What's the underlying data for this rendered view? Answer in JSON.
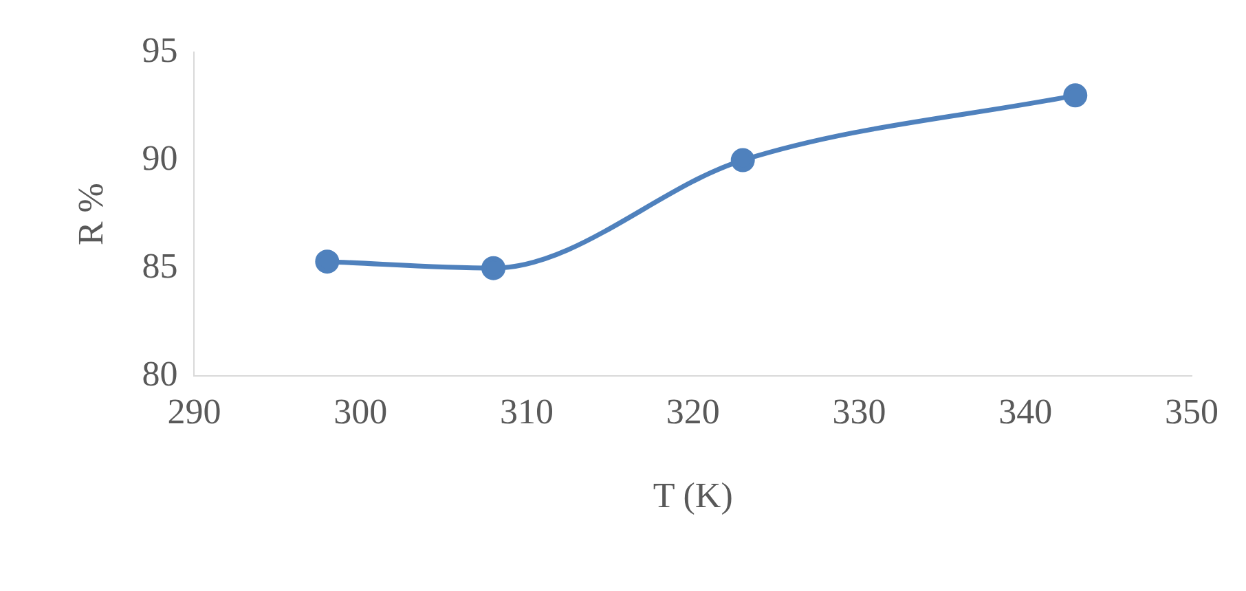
{
  "chart_data": {
    "type": "line",
    "xlabel": "T (K)",
    "ylabel": "R %",
    "x": [
      298,
      308,
      323,
      343
    ],
    "series": [
      {
        "color": "#4f81bd",
        "values": [
          85.3,
          85,
          90,
          93
        ]
      }
    ],
    "xlim": [
      290,
      350
    ],
    "xticks": [
      290,
      300,
      310,
      320,
      330,
      340,
      350
    ],
    "ylim": [
      80,
      95
    ],
    "yticks": [
      80,
      85,
      90,
      95
    ],
    "grid": false,
    "legend": false,
    "marker": "circle",
    "line_style": "solid"
  }
}
